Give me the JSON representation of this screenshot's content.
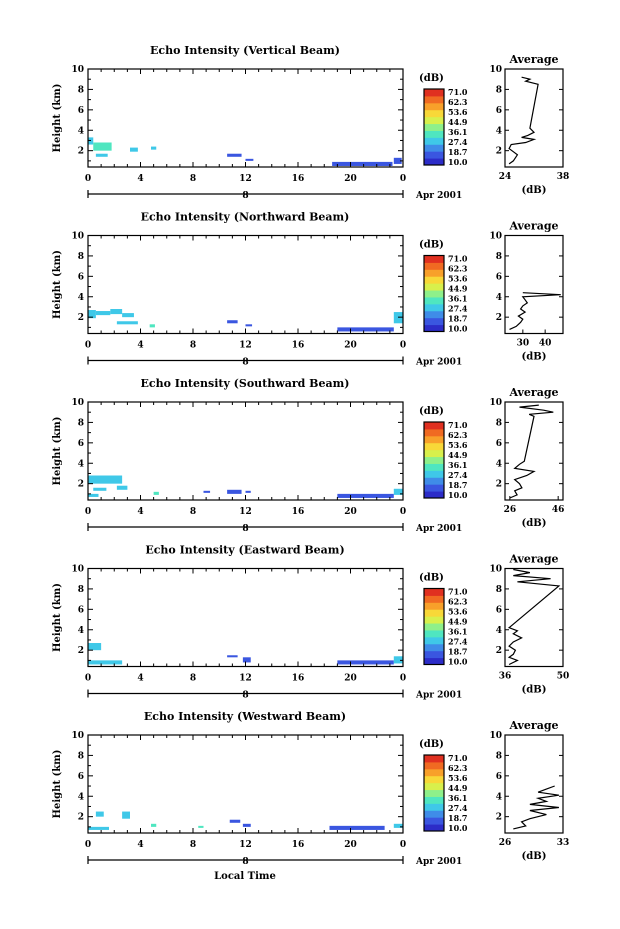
{
  "figure": {
    "xlabel": "Local Time",
    "date_label": "Apr 2001",
    "ylabel": "Height (km)"
  },
  "colorbar": {
    "unit": "(dB)",
    "ticks": [
      "71.0",
      "62.3",
      "53.6",
      "44.9",
      "36.1",
      "27.4",
      "18.7",
      "10.0"
    ],
    "colors": [
      "#2c2cc8",
      "#3a56e0",
      "#3f8ce8",
      "#3fc8e8",
      "#4fe6c0",
      "#8ef08a",
      "#d8f04c",
      "#f8d838",
      "#f8a02a",
      "#f06a22",
      "#e03020"
    ]
  },
  "chart_data": [
    {
      "type": "heatmap",
      "title": "Echo Intensity (Vertical Beam)",
      "ylabel": "Height (km)",
      "x_ticks": [
        "0",
        "4",
        "8",
        "12",
        "16",
        "20",
        "0"
      ],
      "x_range": [
        0,
        24
      ],
      "y_ticks": [
        "10",
        "8",
        "6",
        "4",
        "2"
      ],
      "ylim": [
        0.4,
        10
      ],
      "day_label": "8",
      "echo_regions": [
        {
          "t0": 0.0,
          "t1": 0.4,
          "h0": 2.6,
          "h1": 3.3,
          "db": 31
        },
        {
          "t0": 0.4,
          "t1": 1.8,
          "h0": 2.0,
          "h1": 2.8,
          "db": 33
        },
        {
          "t0": 0.6,
          "t1": 1.5,
          "h0": 1.4,
          "h1": 1.7,
          "db": 32
        },
        {
          "t0": 3.2,
          "t1": 3.8,
          "h0": 1.9,
          "h1": 2.3,
          "db": 27
        },
        {
          "t0": 4.8,
          "t1": 5.2,
          "h0": 2.1,
          "h1": 2.4,
          "db": 31
        },
        {
          "t0": 10.6,
          "t1": 11.7,
          "h0": 1.4,
          "h1": 1.7,
          "db": 19
        },
        {
          "t0": 12.0,
          "t1": 12.6,
          "h0": 1.0,
          "h1": 1.2,
          "db": 19
        },
        {
          "t0": 18.6,
          "t1": 23.2,
          "h0": 0.5,
          "h1": 0.9,
          "db": 17
        },
        {
          "t0": 23.3,
          "t1": 23.9,
          "h0": 0.7,
          "h1": 1.3,
          "db": 19
        }
      ],
      "average_profile": {
        "title": "Average",
        "xlabel": "(dB)",
        "x_ticks": [
          "24",
          "38"
        ],
        "xlim": [
          24,
          38
        ],
        "x": [
          25,
          26,
          26.5,
          27,
          26,
          25,
          25.5,
          29,
          31,
          28,
          29.5,
          31,
          30,
          32,
          29,
          30,
          28
        ],
        "h": [
          0.7,
          1.0,
          1.3,
          1.6,
          1.9,
          2.2,
          2.6,
          2.8,
          3.1,
          3.3,
          3.5,
          3.8,
          4.2,
          8.5,
          8.8,
          9.0,
          9.2
        ]
      }
    },
    {
      "type": "heatmap",
      "title": "Echo Intensity (Northward Beam)",
      "ylabel": "Height (km)",
      "x_ticks": [
        "0",
        "4",
        "8",
        "12",
        "16",
        "20",
        "0"
      ],
      "x_range": [
        0,
        24
      ],
      "y_ticks": [
        "10",
        "8",
        "6",
        "4",
        "2"
      ],
      "ylim": [
        0.4,
        10
      ],
      "day_label": "8",
      "echo_regions": [
        {
          "t0": 0.0,
          "t1": 0.6,
          "h0": 1.9,
          "h1": 2.7,
          "db": 32
        },
        {
          "t0": 0.6,
          "t1": 1.7,
          "h0": 2.2,
          "h1": 2.6,
          "db": 30
        },
        {
          "t0": 1.7,
          "t1": 2.6,
          "h0": 2.3,
          "h1": 2.8,
          "db": 31
        },
        {
          "t0": 2.2,
          "t1": 3.8,
          "h0": 1.3,
          "h1": 1.6,
          "db": 27
        },
        {
          "t0": 2.6,
          "t1": 3.5,
          "h0": 2.0,
          "h1": 2.4,
          "db": 28
        },
        {
          "t0": 4.7,
          "t1": 5.1,
          "h0": 1.0,
          "h1": 1.3,
          "db": 33
        },
        {
          "t0": 10.6,
          "t1": 11.4,
          "h0": 1.4,
          "h1": 1.7,
          "db": 19
        },
        {
          "t0": 12.0,
          "t1": 12.5,
          "h0": 1.1,
          "h1": 1.3,
          "db": 19
        },
        {
          "t0": 19.0,
          "t1": 23.3,
          "h0": 0.6,
          "h1": 1.0,
          "db": 16
        },
        {
          "t0": 23.3,
          "t1": 24.0,
          "h0": 1.4,
          "h1": 2.5,
          "db": 30
        }
      ],
      "average_profile": {
        "title": "Average",
        "xlabel": "(dB)",
        "x_ticks": [
          "30",
          "40"
        ],
        "xlim": [
          22,
          48
        ],
        "x": [
          24,
          27,
          29,
          30,
          28,
          31,
          29,
          30,
          32,
          31,
          30,
          47,
          30
        ],
        "h": [
          0.8,
          1.1,
          1.5,
          1.8,
          2.1,
          2.5,
          2.8,
          3.1,
          3.4,
          3.7,
          4.0,
          4.2,
          4.4
        ]
      }
    },
    {
      "type": "heatmap",
      "title": "Echo Intensity (Southward Beam)",
      "ylabel": "Height (km)",
      "x_ticks": [
        "0",
        "4",
        "8",
        "12",
        "16",
        "20",
        "0"
      ],
      "x_range": [
        0,
        24
      ],
      "y_ticks": [
        "10",
        "8",
        "6",
        "4",
        "2"
      ],
      "ylim": [
        0.4,
        10
      ],
      "day_label": "8",
      "echo_regions": [
        {
          "t0": 0.0,
          "t1": 2.6,
          "h0": 2.0,
          "h1": 2.8,
          "db": 30
        },
        {
          "t0": 0.4,
          "t1": 1.4,
          "h0": 1.3,
          "h1": 1.6,
          "db": 30
        },
        {
          "t0": 0.0,
          "t1": 0.8,
          "h0": 0.7,
          "h1": 1.0,
          "db": 28
        },
        {
          "t0": 2.2,
          "t1": 3.0,
          "h0": 1.4,
          "h1": 1.8,
          "db": 31
        },
        {
          "t0": 5.0,
          "t1": 5.4,
          "h0": 0.9,
          "h1": 1.2,
          "db": 33
        },
        {
          "t0": 8.8,
          "t1": 9.3,
          "h0": 1.1,
          "h1": 1.3,
          "db": 19
        },
        {
          "t0": 10.6,
          "t1": 11.7,
          "h0": 1.0,
          "h1": 1.4,
          "db": 19
        },
        {
          "t0": 12.0,
          "t1": 12.4,
          "h0": 1.1,
          "h1": 1.3,
          "db": 19
        },
        {
          "t0": 19.0,
          "t1": 23.3,
          "h0": 0.6,
          "h1": 1.0,
          "db": 17
        },
        {
          "t0": 23.3,
          "t1": 24.0,
          "h0": 0.9,
          "h1": 1.5,
          "db": 29
        }
      ],
      "average_profile": {
        "title": "Average",
        "xlabel": "(dB)",
        "x_ticks": [
          "26",
          "46"
        ],
        "xlim": [
          24,
          48
        ],
        "x": [
          26,
          29,
          28,
          31,
          30,
          28,
          33,
          36,
          28,
          30,
          32,
          36,
          34,
          44,
          40,
          30,
          38
        ],
        "h": [
          0.6,
          0.9,
          1.3,
          1.6,
          2.0,
          2.4,
          2.8,
          3.2,
          3.5,
          3.9,
          4.2,
          8.6,
          8.8,
          9.0,
          9.2,
          9.5,
          9.7
        ]
      }
    },
    {
      "type": "heatmap",
      "title": "Echo Intensity (Eastward Beam)",
      "ylabel": "Height (km)",
      "x_ticks": [
        "0",
        "4",
        "8",
        "12",
        "16",
        "20",
        "0"
      ],
      "x_range": [
        0,
        24
      ],
      "y_ticks": [
        "10",
        "8",
        "6",
        "4",
        "2"
      ],
      "ylim": [
        0.4,
        10
      ],
      "day_label": "8",
      "echo_regions": [
        {
          "t0": 0.0,
          "t1": 1.0,
          "h0": 2.0,
          "h1": 2.7,
          "db": 31
        },
        {
          "t0": 0.0,
          "t1": 2.6,
          "h0": 0.6,
          "h1": 1.0,
          "db": 28
        },
        {
          "t0": 10.6,
          "t1": 11.4,
          "h0": 1.3,
          "h1": 1.5,
          "db": 19
        },
        {
          "t0": 11.8,
          "t1": 12.4,
          "h0": 0.8,
          "h1": 1.3,
          "db": 19
        },
        {
          "t0": 19.0,
          "t1": 23.3,
          "h0": 0.6,
          "h1": 1.0,
          "db": 17
        },
        {
          "t0": 23.3,
          "t1": 24.0,
          "h0": 0.7,
          "h1": 1.4,
          "db": 30
        }
      ],
      "average_profile": {
        "title": "Average",
        "xlabel": "(dB)",
        "x_ticks": [
          "36",
          "50"
        ],
        "xlim": [
          36,
          50
        ],
        "x": [
          37,
          39,
          37,
          38,
          38.5,
          37,
          38,
          40,
          38,
          39,
          37,
          49,
          39,
          47,
          38,
          42,
          38
        ],
        "h": [
          0.6,
          1.0,
          1.3,
          1.6,
          2.0,
          2.4,
          2.8,
          3.2,
          3.6,
          3.9,
          4.2,
          8.3,
          8.7,
          9.0,
          9.3,
          9.6,
          9.9
        ]
      }
    },
    {
      "type": "heatmap",
      "title": "Echo Intensity (Westward Beam)",
      "ylabel": "Height (km)",
      "x_ticks": [
        "0",
        "4",
        "8",
        "12",
        "16",
        "20",
        "0"
      ],
      "x_range": [
        0,
        24
      ],
      "y_ticks": [
        "10",
        "8",
        "6",
        "4",
        "2"
      ],
      "ylim": [
        0.4,
        10
      ],
      "day_label": "8",
      "echo_regions": [
        {
          "t0": 0.0,
          "t1": 1.6,
          "h0": 0.7,
          "h1": 1.0,
          "db": 28
        },
        {
          "t0": 0.6,
          "t1": 1.2,
          "h0": 2.0,
          "h1": 2.5,
          "db": 31
        },
        {
          "t0": 2.6,
          "t1": 3.2,
          "h0": 1.8,
          "h1": 2.5,
          "db": 28
        },
        {
          "t0": 4.8,
          "t1": 5.2,
          "h0": 1.0,
          "h1": 1.3,
          "db": 33
        },
        {
          "t0": 8.4,
          "t1": 8.8,
          "h0": 0.9,
          "h1": 1.1,
          "db": 33
        },
        {
          "t0": 10.8,
          "t1": 11.6,
          "h0": 1.4,
          "h1": 1.7,
          "db": 19
        },
        {
          "t0": 11.8,
          "t1": 12.4,
          "h0": 1.0,
          "h1": 1.3,
          "db": 19
        },
        {
          "t0": 18.4,
          "t1": 22.6,
          "h0": 0.7,
          "h1": 1.1,
          "db": 17
        },
        {
          "t0": 23.3,
          "t1": 24.0,
          "h0": 0.9,
          "h1": 1.3,
          "db": 30
        }
      ],
      "average_profile": {
        "title": "Average",
        "xlabel": "(dB)",
        "x_ticks": [
          "26",
          "33"
        ],
        "xlim": [
          26,
          33
        ],
        "x": [
          27,
          28.5,
          28,
          29,
          31,
          29,
          32.5,
          29,
          31,
          30,
          32.5,
          30,
          31,
          32
        ],
        "h": [
          0.8,
          1.1,
          1.5,
          1.8,
          2.2,
          2.6,
          2.9,
          3.2,
          3.5,
          3.8,
          4.1,
          4.4,
          4.7,
          5.0
        ]
      }
    }
  ]
}
